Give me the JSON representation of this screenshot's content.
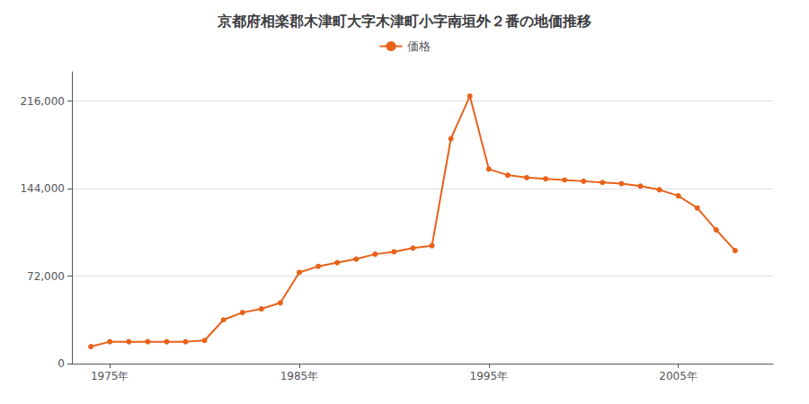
{
  "chart_data": {
    "type": "line",
    "title": "京都府相楽郡木津町大字木津町小字南垣外２番の地価推移",
    "x": [
      1974,
      1975,
      1976,
      1977,
      1978,
      1979,
      1980,
      1981,
      1982,
      1983,
      1984,
      1985,
      1986,
      1987,
      1988,
      1989,
      1990,
      1991,
      1992,
      1993,
      1994,
      1995,
      1996,
      1997,
      1998,
      1999,
      2000,
      2001,
      2002,
      2003,
      2004,
      2005,
      2006,
      2007,
      2008
    ],
    "series": [
      {
        "name": "価格",
        "color": "#E8621A",
        "values": [
          14000,
          18000,
          18000,
          18000,
          18000,
          18000,
          19000,
          36000,
          42000,
          45000,
          50000,
          75000,
          80000,
          83000,
          86000,
          90000,
          92000,
          95000,
          97000,
          185000,
          220000,
          160000,
          155000,
          153000,
          152000,
          151000,
          150000,
          149000,
          148000,
          146000,
          143000,
          138000,
          128000,
          110000,
          93000
        ]
      }
    ],
    "xlim": [
      1973,
      2010
    ],
    "xticks": [
      {
        "value": 1975,
        "label": "1975年"
      },
      {
        "value": 1985,
        "label": "1985年"
      },
      {
        "value": 1995,
        "label": "1995年"
      },
      {
        "value": 2005,
        "label": "2005年"
      }
    ],
    "ylim": [
      0,
      240000
    ],
    "yticks": [
      0,
      {
        "value": 72000,
        "label": "72,000"
      },
      {
        "value": 144000,
        "label": "144,000"
      },
      {
        "value": 216000,
        "label": "216,000"
      }
    ],
    "grid": true,
    "legend": "top",
    "marker": "circle"
  }
}
